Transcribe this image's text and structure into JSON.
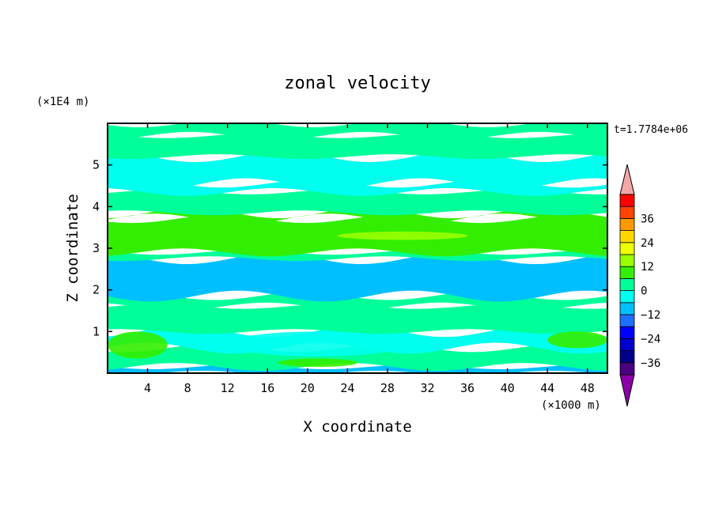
{
  "chart_data": {
    "type": "heatmap",
    "title": "zonal velocity",
    "xlabel": "X coordinate",
    "ylabel": "Z coordinate",
    "x_unit": "(×1000 m)",
    "y_unit": "(×1E4 m)",
    "time_label": "t=1.7784e+06",
    "xlim": [
      0,
      50
    ],
    "ylim": [
      0,
      6
    ],
    "x_ticks": [
      4,
      8,
      12,
      16,
      20,
      24,
      28,
      32,
      36,
      40,
      44,
      48
    ],
    "y_ticks": [
      1,
      2,
      3,
      4,
      5
    ],
    "grid": false,
    "colorbar": {
      "levels": [
        -42,
        -36,
        -30,
        -24,
        -18,
        -12,
        -6,
        0,
        6,
        12,
        18,
        24,
        30,
        36,
        42
      ],
      "labels": [
        -36,
        -24,
        -12,
        0,
        12,
        24,
        36
      ],
      "colors": [
        "#4b0082",
        "#00008b",
        "#0000cd",
        "#0000ff",
        "#1e6fff",
        "#00bfff",
        "#00ffee",
        "#00ff99",
        "#33ee00",
        "#99ff00",
        "#eeff00",
        "#ffd700",
        "#ff9900",
        "#ff4400",
        "#ff0000"
      ],
      "over_color": "#f4a6a6",
      "under_color": "#8b00a8"
    },
    "bands": [
      {
        "z": [
          0.0,
          0.15
        ],
        "value": -8
      },
      {
        "z": [
          0.15,
          0.6
        ],
        "value": 0
      },
      {
        "z": [
          0.6,
          1.0
        ],
        "value": -3
      },
      {
        "z": [
          1.0,
          1.6
        ],
        "value": 2
      },
      {
        "z": [
          1.6,
          1.85
        ],
        "value": 4
      },
      {
        "z": [
          1.85,
          2.75
        ],
        "value": -7
      },
      {
        "z": [
          2.75,
          2.9
        ],
        "value": 3
      },
      {
        "z": [
          2.9,
          3.7
        ],
        "value": 11
      },
      {
        "z": [
          3.7,
          3.85
        ],
        "value": 7
      },
      {
        "z": [
          3.85,
          4.35
        ],
        "value": 2
      },
      {
        "z": [
          4.35,
          4.55
        ],
        "value": -2
      },
      {
        "z": [
          4.55,
          5.2
        ],
        "value": -3
      },
      {
        "z": [
          5.2,
          5.7
        ],
        "value": 2
      },
      {
        "z": [
          5.7,
          6.0
        ],
        "value": 0
      }
    ],
    "patches": [
      {
        "x": [
          0,
          6
        ],
        "z": [
          0.35,
          1.0
        ],
        "value": 9
      },
      {
        "x": [
          23,
          36
        ],
        "z": [
          3.2,
          3.4
        ],
        "value": 14
      },
      {
        "x": [
          12,
          30
        ],
        "z": [
          0.4,
          1.0
        ],
        "value": -6
      },
      {
        "x": [
          44,
          50
        ],
        "z": [
          0.6,
          1.0
        ],
        "value": 9
      },
      {
        "x": [
          17,
          25
        ],
        "z": [
          0.15,
          0.35
        ],
        "value": 6
      }
    ]
  }
}
